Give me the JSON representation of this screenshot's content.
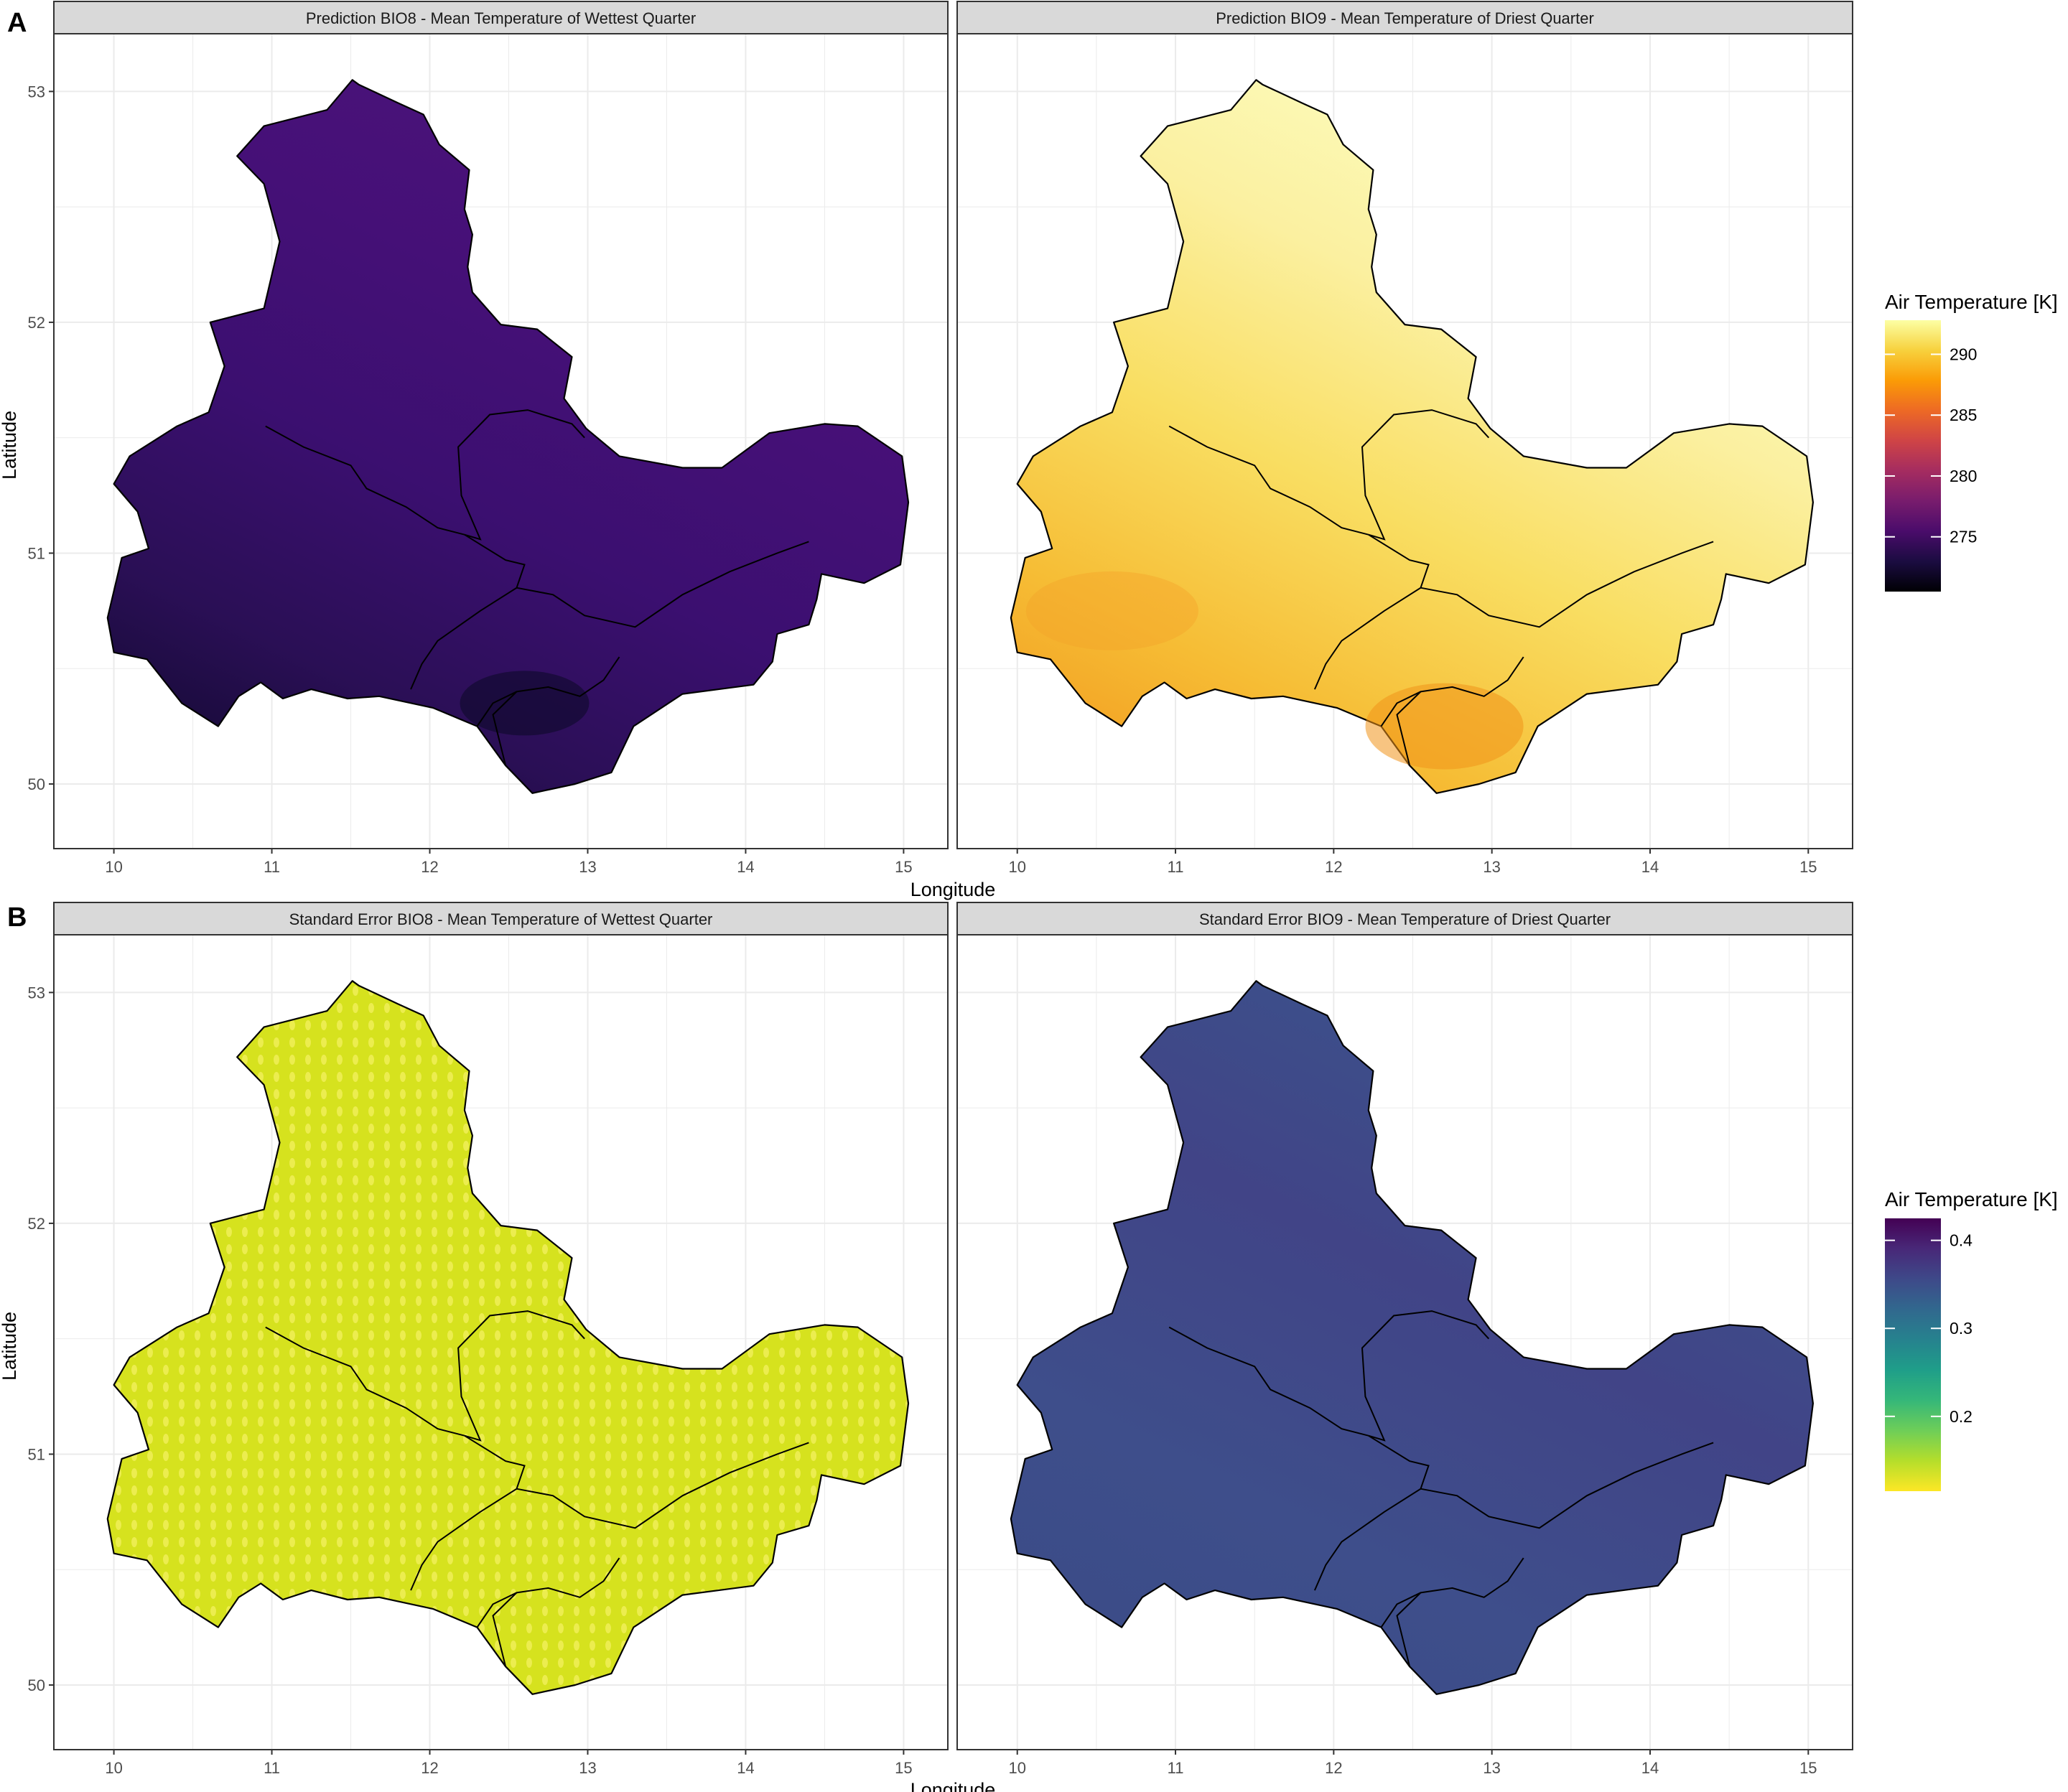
{
  "figure": {
    "row_tags": [
      "A",
      "B"
    ],
    "x_axis_label": "Longitude",
    "y_axis_label": "Latitude",
    "x_ticks": [
      "10",
      "11",
      "12",
      "13",
      "14",
      "15"
    ],
    "y_ticks": [
      "50",
      "51",
      "52",
      "53"
    ]
  },
  "panels": [
    {
      "title": "Prediction BIO8 - Mean Temperature of Wettest Quarter",
      "fill_colors": [
        "#0d0829",
        "#2a0f55",
        "#3b0f70",
        "#451077",
        "#4b137a"
      ],
      "region_style": "smooth"
    },
    {
      "title": "Prediction BIO9 - Mean Temperature of Driest Quarter",
      "fill_colors": [
        "#f1931a",
        "#f6bd35",
        "#f9de62",
        "#fbf0a0",
        "#fcfdbf"
      ],
      "region_style": "smooth"
    },
    {
      "title": "Standard Error BIO8 - Mean Temperature of Wettest Quarter",
      "fill_colors": [
        "#d6e21e",
        "#e3ea3c",
        "#f3f05a",
        "#c2d82a"
      ],
      "region_style": "dotted"
    },
    {
      "title": "Standard Error BIO9 - Mean Temperature of Driest Quarter",
      "fill_colors": [
        "#3a4b86",
        "#3e4e8b",
        "#414487",
        "#3b528b"
      ],
      "region_style": "smooth"
    }
  ],
  "legends": [
    {
      "title": "Air Temperature [K]",
      "scale": "inferno",
      "ticks": [
        "290",
        "285",
        "280",
        "275"
      ],
      "tick_values": [
        290,
        285,
        280,
        275
      ],
      "range": [
        270.5,
        292.8
      ],
      "colors": [
        "#000004",
        "#1b0c41",
        "#4a0c6b",
        "#781c6d",
        "#a52c60",
        "#cf4446",
        "#ed6925",
        "#fb9b06",
        "#f7d13d",
        "#fcffa4"
      ]
    },
    {
      "title": "Air Temperature [K]",
      "scale": "viridis",
      "ticks": [
        "0.4",
        "0.3",
        "0.2"
      ],
      "tick_values": [
        0.4,
        0.3,
        0.2
      ],
      "range": [
        0.115,
        0.425
      ],
      "colors": [
        "#fde725",
        "#b5de2b",
        "#6ece58",
        "#35b779",
        "#1f9e89",
        "#26828e",
        "#31688e",
        "#3e4989",
        "#482878",
        "#440154"
      ]
    }
  ]
}
